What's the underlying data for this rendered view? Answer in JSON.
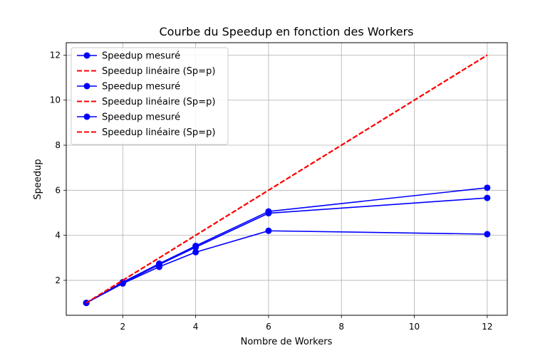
{
  "chart_data": {
    "type": "line",
    "title": "Courbe du Speedup en fonction des Workers",
    "xlabel": "Nombre de Workers",
    "ylabel": "Speedup",
    "xlim": [
      0.45,
      12.55
    ],
    "ylim": [
      0.45,
      12.55
    ],
    "xticks": [
      2,
      4,
      6,
      8,
      10,
      12
    ],
    "yticks": [
      2,
      4,
      6,
      8,
      10,
      12
    ],
    "grid": true,
    "legend_position": "top-left",
    "series": [
      {
        "name": "Speedup mesuré",
        "style": "solid-marker",
        "color": "#0000ff",
        "x": [
          1,
          2,
          3,
          4,
          6,
          12
        ],
        "y": [
          1.0,
          1.92,
          2.74,
          3.53,
          5.06,
          6.11
        ]
      },
      {
        "name": "Speedup linéaire (Sp=p)",
        "style": "dashed",
        "color": "#ff0000",
        "x": [
          1,
          2,
          3,
          4,
          6,
          12
        ],
        "y": [
          1,
          2,
          3,
          4,
          6,
          12
        ]
      },
      {
        "name": "Speedup mesuré",
        "style": "solid-marker",
        "color": "#0000ff",
        "x": [
          1,
          2,
          3,
          4,
          6,
          12
        ],
        "y": [
          1.0,
          1.88,
          2.7,
          3.47,
          4.98,
          5.66
        ]
      },
      {
        "name": "Speedup linéaire (Sp=p)",
        "style": "dashed",
        "color": "#ff0000",
        "x": [
          1,
          2,
          3,
          4,
          6,
          12
        ],
        "y": [
          1,
          2,
          3,
          4,
          6,
          12
        ]
      },
      {
        "name": "Speedup mesuré",
        "style": "solid-marker",
        "color": "#0000ff",
        "x": [
          1,
          2,
          3,
          4,
          6,
          12
        ],
        "y": [
          1.0,
          1.86,
          2.6,
          3.25,
          4.2,
          4.05
        ]
      },
      {
        "name": "Speedup linéaire (Sp=p)",
        "style": "dashed",
        "color": "#ff0000",
        "x": [
          1,
          2,
          3,
          4,
          6,
          12
        ],
        "y": [
          1,
          2,
          3,
          4,
          6,
          12
        ]
      }
    ]
  }
}
